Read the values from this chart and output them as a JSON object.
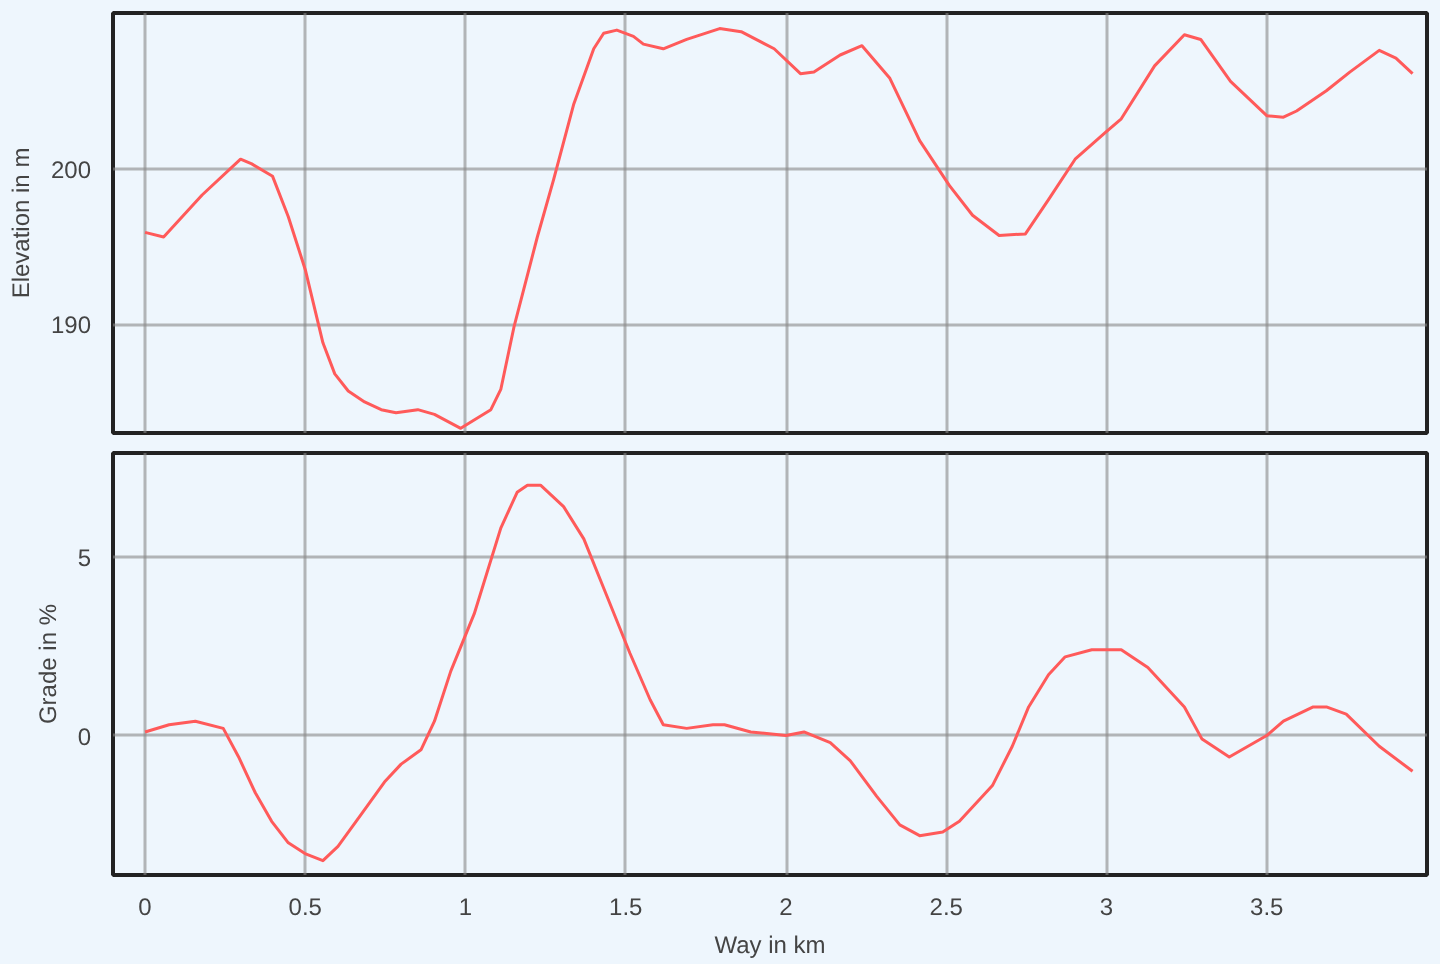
{
  "chart_data": [
    {
      "type": "line",
      "ylabel": "Elevation in m",
      "xlim": [
        -0.1,
        4.0
      ],
      "ylim": [
        183,
        210
      ],
      "xticks": [
        0,
        0.5,
        1,
        1.5,
        2,
        2.5,
        3,
        3.5
      ],
      "yticks": [
        190,
        200
      ],
      "tick_labels": "y",
      "grid": true,
      "x": [
        0,
        0.058,
        0.178,
        0.298,
        0.333,
        0.398,
        0.447,
        0.5,
        0.555,
        0.592,
        0.634,
        0.685,
        0.737,
        0.783,
        0.851,
        0.903,
        0.985,
        1.079,
        1.11,
        1.151,
        1.224,
        1.275,
        1.337,
        1.4,
        1.431,
        1.472,
        1.524,
        1.555,
        1.617,
        1.69,
        1.793,
        1.86,
        1.963,
        2.045,
        2.087,
        2.169,
        2.237,
        2.324,
        2.417,
        2.51,
        2.582,
        2.665,
        2.747,
        2.819,
        2.902,
        2.995,
        3.046,
        3.15,
        3.243,
        3.294,
        3.387,
        3.5,
        3.552,
        3.593,
        3.686,
        3.759,
        3.851,
        3.903,
        3.955
      ],
      "series": [
        {
          "color": "#ff5a5a",
          "values": [
            195.9,
            195.6,
            198.3,
            200.6,
            200.3,
            199.5,
            196.9,
            193.5,
            188.8,
            186.8,
            185.7,
            185.0,
            184.5,
            184.3,
            184.5,
            184.2,
            183.3,
            184.5,
            185.8,
            189.8,
            195.6,
            199.3,
            204.1,
            207.7,
            208.7,
            208.9,
            208.5,
            208.0,
            207.7,
            208.3,
            209.0,
            208.8,
            207.7,
            206.1,
            206.2,
            207.3,
            207.9,
            205.8,
            201.8,
            198.9,
            197.0,
            195.7,
            195.8,
            198.0,
            200.6,
            202.3,
            203.2,
            206.6,
            208.6,
            208.3,
            205.6,
            203.4,
            203.3,
            203.7,
            205.0,
            206.2,
            207.6,
            207.1,
            206.1
          ]
        }
      ]
    },
    {
      "type": "line",
      "xlabel": "Way in km",
      "ylabel": "Grade in %",
      "xlim": [
        -0.1,
        4.0
      ],
      "ylim": [
        -3.9,
        7.9
      ],
      "xticks": [
        0,
        0.5,
        1,
        1.5,
        2,
        2.5,
        3,
        3.5
      ],
      "yticks": [
        0,
        5
      ],
      "grid": true,
      "x": [
        0,
        0.075,
        0.157,
        0.244,
        0.292,
        0.344,
        0.395,
        0.447,
        0.499,
        0.555,
        0.602,
        0.675,
        0.747,
        0.799,
        0.861,
        0.903,
        0.954,
        1.027,
        1.11,
        1.161,
        1.193,
        1.234,
        1.306,
        1.369,
        1.441,
        1.513,
        1.576,
        1.617,
        1.69,
        1.772,
        1.808,
        1.89,
        2.0,
        2.056,
        2.138,
        2.2,
        2.283,
        2.355,
        2.417,
        2.489,
        2.541,
        2.644,
        2.706,
        2.757,
        2.819,
        2.871,
        2.954,
        3.046,
        3.129,
        3.243,
        3.298,
        3.383,
        3.5,
        3.552,
        3.645,
        3.686,
        3.748,
        3.851,
        3.955
      ],
      "series": [
        {
          "color": "#ff5a5a",
          "values": [
            0.1,
            0.3,
            0.4,
            0.2,
            -0.6,
            -1.6,
            -2.4,
            -3.0,
            -3.3,
            -3.5,
            -3.1,
            -2.2,
            -1.3,
            -0.8,
            -0.4,
            0.4,
            1.8,
            3.4,
            5.8,
            6.8,
            7.0,
            7.0,
            6.4,
            5.5,
            3.9,
            2.3,
            1.0,
            0.3,
            0.2,
            0.3,
            0.3,
            0.1,
            0.0,
            0.1,
            -0.2,
            -0.7,
            -1.7,
            -2.5,
            -2.8,
            -2.7,
            -2.4,
            -1.4,
            -0.3,
            0.8,
            1.7,
            2.2,
            2.4,
            2.4,
            1.9,
            0.8,
            -0.1,
            -0.6,
            0.0,
            0.4,
            0.8,
            0.8,
            0.6,
            -0.3,
            -1.0
          ]
        }
      ]
    }
  ]
}
